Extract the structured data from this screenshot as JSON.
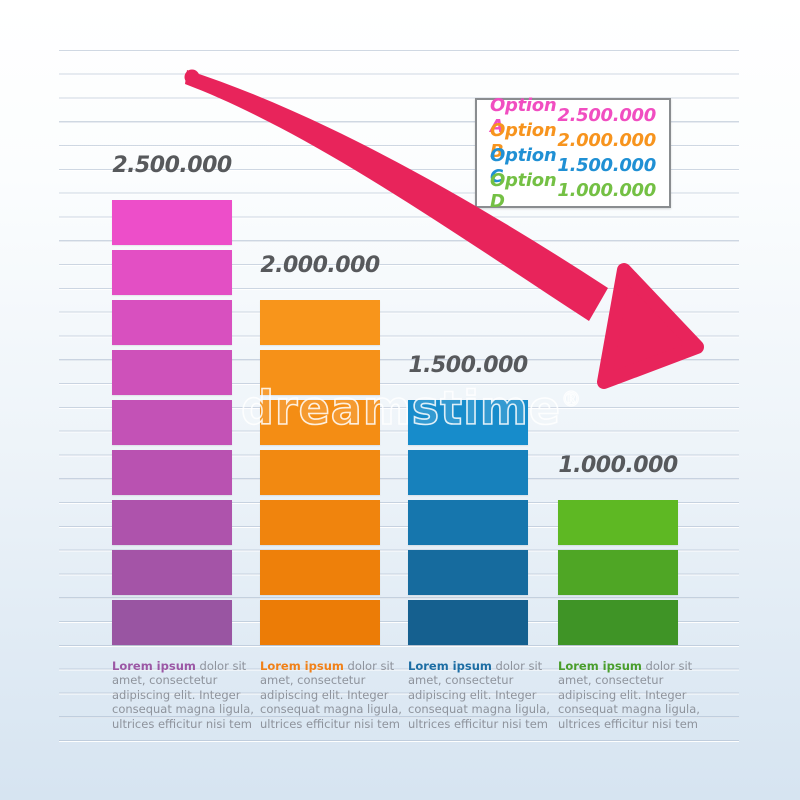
{
  "watermark": {
    "text": "dreamstime",
    "reg": "®"
  },
  "legend": {
    "items": [
      {
        "label": "Option A",
        "value": "2.500.000",
        "color": "#f14ec1"
      },
      {
        "label": "Option B",
        "value": "2.000.000",
        "color": "#f7941e"
      },
      {
        "label": "Option C",
        "value": "1.500.000",
        "color": "#2090d4"
      },
      {
        "label": "Option D",
        "value": "1.000.000",
        "color": "#74c044"
      }
    ]
  },
  "chart_data": {
    "type": "bar",
    "title": "",
    "categories": [
      "Option A",
      "Option B",
      "Option C",
      "Option D"
    ],
    "values": [
      2500000,
      2000000,
      1500000,
      1000000
    ],
    "value_labels": [
      "2.500.000",
      "2.000.000",
      "1.500.000",
      "1.000.000"
    ],
    "segments": [
      9,
      7,
      5,
      3
    ],
    "bar_colors": [
      {
        "top": "#ed4ec9",
        "bottom": "#9955a2"
      },
      {
        "top": "#f8951b",
        "bottom": "#ec7c06"
      },
      {
        "top": "#178ccb",
        "bottom": "#15608f"
      },
      {
        "top": "#5eb823",
        "bottom": "#3f9426"
      }
    ],
    "ylim": [
      0,
      2500000
    ],
    "legend_position": "top-right",
    "background": "ruled-paper",
    "trend_arrow": {
      "direction": "down-right",
      "color": "#e8245b"
    }
  },
  "footnotes": [
    {
      "lead": "Lorem ipsum",
      "lead_color": "#9b58a5",
      "body": " dolor sit amet, consectetur adipiscing elit. Integer consequat magna ligula, ultrices efficitur nisi tem"
    },
    {
      "lead": "Lorem ipsum",
      "lead_color": "#f08119",
      "body": " dolor sit amet, consectetur adipiscing elit. Integer consequat magna ligula, ultrices efficitur nisi tem"
    },
    {
      "lead": "Lorem ipsum",
      "lead_color": "#1d6ea4",
      "body": " dolor sit amet, consectetur adipiscing elit. Integer consequat magna ligula, ultrices efficitur nisi tem"
    },
    {
      "lead": "Lorem ipsum",
      "lead_color": "#4a9e2d",
      "body": " dolor sit amet, consectetur adipiscing elit. Integer consequat magna ligula, ultrices efficitur nisi tem"
    }
  ]
}
